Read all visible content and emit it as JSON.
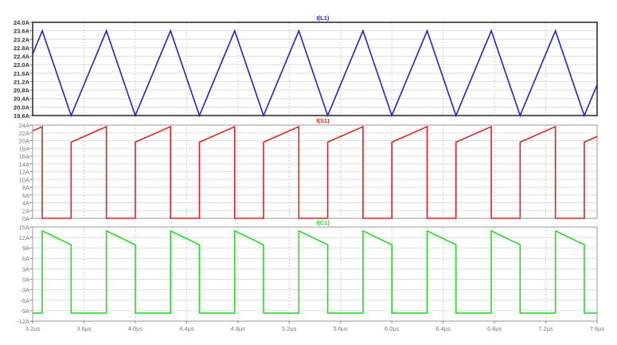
{
  "chart_data": [
    {
      "type": "line",
      "title": "I(L1)",
      "color": "#2222cc",
      "ylim": [
        19.6,
        24.0
      ],
      "yticks": [
        19.6,
        20.0,
        20.4,
        20.8,
        21.2,
        21.6,
        22.0,
        22.4,
        22.8,
        23.2,
        23.6,
        24.0
      ],
      "ytick_labels": [
        "19.6A",
        "20.0A",
        "20.4A",
        "20.8A",
        "21.2A",
        "21.6A",
        "22.0A",
        "22.4A",
        "22.8A",
        "23.2A",
        "23.6A",
        "24.0A"
      ],
      "xlim": [
        3.2,
        7.6
      ],
      "grid": true,
      "points": [
        [
          3.2,
          22.5
        ],
        [
          3.275,
          23.6
        ],
        [
          3.5,
          19.6
        ],
        [
          3.775,
          23.6
        ],
        [
          4.0,
          19.6
        ],
        [
          4.275,
          23.6
        ],
        [
          4.5,
          19.6
        ],
        [
          4.775,
          23.6
        ],
        [
          5.0,
          19.6
        ],
        [
          5.275,
          23.6
        ],
        [
          5.5,
          19.6
        ],
        [
          5.775,
          23.6
        ],
        [
          6.0,
          19.6
        ],
        [
          6.275,
          23.6
        ],
        [
          6.5,
          19.6
        ],
        [
          6.775,
          23.6
        ],
        [
          7.0,
          19.6
        ],
        [
          7.275,
          23.6
        ],
        [
          7.5,
          19.6
        ],
        [
          7.6,
          21.05
        ]
      ]
    },
    {
      "type": "line",
      "title": "I(S1)",
      "color": "#e02020",
      "ylim": [
        0,
        24
      ],
      "yticks": [
        0,
        2,
        4,
        6,
        8,
        10,
        12,
        14,
        16,
        18,
        20,
        22,
        24
      ],
      "ytick_labels": [
        "0A",
        "2A",
        "4A",
        "6A",
        "8A",
        "10A",
        "12A",
        "14A",
        "16A",
        "18A",
        "20A",
        "22A",
        "24A"
      ],
      "xlim": [
        3.2,
        7.6
      ],
      "grid": true,
      "points": [
        [
          3.2,
          22.5
        ],
        [
          3.275,
          23.6
        ],
        [
          3.275,
          0
        ],
        [
          3.5,
          0
        ],
        [
          3.5,
          19.6
        ],
        [
          3.775,
          23.6
        ],
        [
          3.775,
          0
        ],
        [
          4.0,
          0
        ],
        [
          4.0,
          19.6
        ],
        [
          4.275,
          23.6
        ],
        [
          4.275,
          0
        ],
        [
          4.5,
          0
        ],
        [
          4.5,
          19.6
        ],
        [
          4.775,
          23.6
        ],
        [
          4.775,
          0
        ],
        [
          5.0,
          0
        ],
        [
          5.0,
          19.6
        ],
        [
          5.275,
          23.6
        ],
        [
          5.275,
          0
        ],
        [
          5.5,
          0
        ],
        [
          5.5,
          19.6
        ],
        [
          5.775,
          23.6
        ],
        [
          5.775,
          0
        ],
        [
          6.0,
          0
        ],
        [
          6.0,
          19.6
        ],
        [
          6.275,
          23.6
        ],
        [
          6.275,
          0
        ],
        [
          6.5,
          0
        ],
        [
          6.5,
          19.6
        ],
        [
          6.775,
          23.6
        ],
        [
          6.775,
          0
        ],
        [
          7.0,
          0
        ],
        [
          7.0,
          19.6
        ],
        [
          7.275,
          23.6
        ],
        [
          7.275,
          0
        ],
        [
          7.5,
          0
        ],
        [
          7.5,
          19.6
        ],
        [
          7.6,
          21.05
        ]
      ]
    },
    {
      "type": "line",
      "title": "I(C1)",
      "color": "#22dd22",
      "ylim": [
        -12,
        15
      ],
      "yticks": [
        -12,
        -9,
        -6,
        -3,
        0,
        3,
        6,
        9,
        12,
        15
      ],
      "ytick_labels": [
        "-12A",
        "-9A",
        "-6A",
        "-3A",
        "0A",
        "3A",
        "6A",
        "9A",
        "12A",
        "15A"
      ],
      "xlim": [
        3.2,
        7.6
      ],
      "xticks": [
        3.2,
        3.6,
        4.0,
        4.4,
        4.8,
        5.2,
        5.6,
        6.0,
        6.4,
        6.8,
        7.2,
        7.6
      ],
      "xtick_labels": [
        "3.2µs",
        "3.6µs",
        "4.0µs",
        "4.4µs",
        "4.8µs",
        "5.2µs",
        "5.6µs",
        "6.0µs",
        "6.4µs",
        "6.8µs",
        "7.2µs",
        "7.6µs"
      ],
      "grid": true,
      "points": [
        [
          3.2,
          -9.7
        ],
        [
          3.275,
          -9.7
        ],
        [
          3.275,
          13.9
        ],
        [
          3.5,
          9.9
        ],
        [
          3.5,
          -9.7
        ],
        [
          3.775,
          -9.7
        ],
        [
          3.775,
          13.9
        ],
        [
          4.0,
          9.9
        ],
        [
          4.0,
          -9.7
        ],
        [
          4.275,
          -9.7
        ],
        [
          4.275,
          13.9
        ],
        [
          4.5,
          9.9
        ],
        [
          4.5,
          -9.7
        ],
        [
          4.775,
          -9.7
        ],
        [
          4.775,
          13.9
        ],
        [
          5.0,
          9.9
        ],
        [
          5.0,
          -9.7
        ],
        [
          5.275,
          -9.7
        ],
        [
          5.275,
          13.9
        ],
        [
          5.5,
          9.9
        ],
        [
          5.5,
          -9.7
        ],
        [
          5.775,
          -9.7
        ],
        [
          5.775,
          13.9
        ],
        [
          6.0,
          9.9
        ],
        [
          6.0,
          -9.7
        ],
        [
          6.275,
          -9.7
        ],
        [
          6.275,
          13.9
        ],
        [
          6.5,
          9.9
        ],
        [
          6.5,
          -9.7
        ],
        [
          6.775,
          -9.7
        ],
        [
          6.775,
          13.9
        ],
        [
          7.0,
          9.9
        ],
        [
          7.0,
          -9.7
        ],
        [
          7.275,
          -9.7
        ],
        [
          7.275,
          13.9
        ],
        [
          7.5,
          9.9
        ],
        [
          7.5,
          -9.7
        ],
        [
          7.6,
          -9.7
        ]
      ]
    }
  ]
}
